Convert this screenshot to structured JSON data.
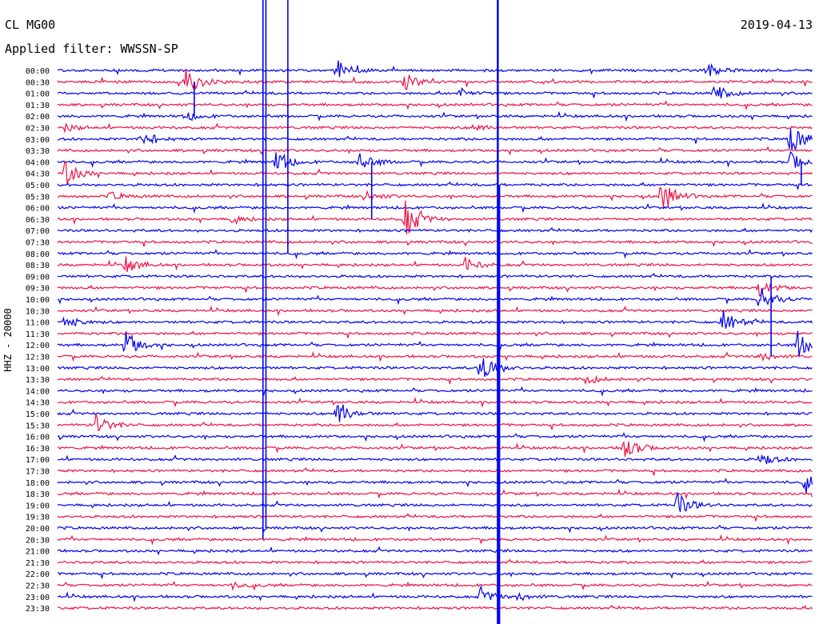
{
  "header": {
    "station": "CL MG00",
    "date": "2019-04-13",
    "filter": "Applied filter: WWSSN-SP"
  },
  "colors": {
    "trace_a": "#0000ee",
    "trace_b": "#ee1144",
    "background": "#ffffff",
    "text": "#000000"
  },
  "chart_data": {
    "type": "line",
    "title": "CL MG00",
    "ylabel": "HHZ - 20000",
    "row_labels": [
      "00:00",
      "00:30",
      "01:00",
      "01:30",
      "02:00",
      "02:30",
      "03:00",
      "03:30",
      "04:00",
      "04:30",
      "05:00",
      "05:30",
      "06:00",
      "06:30",
      "07:00",
      "07:30",
      "08:00",
      "08:30",
      "09:00",
      "09:30",
      "10:00",
      "10:30",
      "11:00",
      "11:30",
      "12:00",
      "12:30",
      "13:00",
      "13:30",
      "14:00",
      "14:30",
      "15:00",
      "15:30",
      "16:00",
      "16:30",
      "17:00",
      "17:30",
      "18:00",
      "18:30",
      "19:00",
      "19:30",
      "20:00",
      "20:30",
      "21:00",
      "21:30",
      "22:00",
      "22:30",
      "23:00",
      "23:30"
    ],
    "row_minutes": 30,
    "events": [
      {
        "row": 0,
        "t": 0.37,
        "amp": 12
      },
      {
        "row": 0,
        "t": 0.86,
        "amp": 9
      },
      {
        "row": 1,
        "t": 0.17,
        "amp": 18
      },
      {
        "row": 1,
        "t": 0.46,
        "amp": 10
      },
      {
        "row": 2,
        "t": 0.53,
        "amp": 7
      },
      {
        "row": 2,
        "t": 0.87,
        "amp": 10
      },
      {
        "row": 4,
        "t": 0.17,
        "amp": 6
      },
      {
        "row": 5,
        "t": 0.01,
        "amp": 4
      },
      {
        "row": 5,
        "t": 0.55,
        "amp": 5
      },
      {
        "row": 6,
        "t": 0.11,
        "amp": 12
      },
      {
        "row": 6,
        "t": 0.97,
        "amp": 20
      },
      {
        "row": 8,
        "t": 0.29,
        "amp": 14
      },
      {
        "row": 8,
        "t": 0.4,
        "amp": 14
      },
      {
        "row": 8,
        "t": 0.97,
        "amp": 12
      },
      {
        "row": 9,
        "t": 0.01,
        "amp": 16
      },
      {
        "row": 11,
        "t": 0.07,
        "amp": 5
      },
      {
        "row": 11,
        "t": 0.41,
        "amp": 6
      },
      {
        "row": 11,
        "t": 0.8,
        "amp": 22
      },
      {
        "row": 13,
        "t": 0.23,
        "amp": 5
      },
      {
        "row": 13,
        "t": 0.46,
        "amp": 26
      },
      {
        "row": 17,
        "t": 0.09,
        "amp": 10
      },
      {
        "row": 17,
        "t": 0.54,
        "amp": 9
      },
      {
        "row": 19,
        "t": 0.93,
        "amp": 10
      },
      {
        "row": 20,
        "t": 0.93,
        "amp": 16
      },
      {
        "row": 22,
        "t": 0.01,
        "amp": 8
      },
      {
        "row": 22,
        "t": 0.88,
        "amp": 16
      },
      {
        "row": 24,
        "t": 0.09,
        "amp": 18
      },
      {
        "row": 24,
        "t": 0.98,
        "amp": 20
      },
      {
        "row": 25,
        "t": 0.93,
        "amp": 6
      },
      {
        "row": 26,
        "t": 0.56,
        "amp": 24
      },
      {
        "row": 27,
        "t": 0.7,
        "amp": 6
      },
      {
        "row": 30,
        "t": 0.37,
        "amp": 18
      },
      {
        "row": 31,
        "t": 0.05,
        "amp": 16
      },
      {
        "row": 33,
        "t": 0.75,
        "amp": 16
      },
      {
        "row": 34,
        "t": 0.93,
        "amp": 10
      },
      {
        "row": 36,
        "t": 0.99,
        "amp": 12
      },
      {
        "row": 38,
        "t": 0.82,
        "amp": 16
      },
      {
        "row": 45,
        "t": 0.23,
        "amp": 5
      },
      {
        "row": 46,
        "t": 0.56,
        "amp": 10
      },
      {
        "row": 46,
        "t": 0.61,
        "amp": 5
      }
    ],
    "spikes": [
      {
        "t": 0.272,
        "from_row": 0,
        "to_row": 41
      },
      {
        "t": 0.276,
        "from_row": 0,
        "to_row": 40
      },
      {
        "t": 0.305,
        "from_row": 0,
        "to_row": 16
      },
      {
        "t": 0.583,
        "from_row": 0,
        "to_row": 48
      },
      {
        "t": 0.585,
        "from_row": 10,
        "to_row": 48
      },
      {
        "t": 0.181,
        "from_row": 4,
        "to_row": 1
      },
      {
        "t": 0.416,
        "from_row": 8,
        "to_row": 13
      },
      {
        "t": 0.945,
        "from_row": 18,
        "to_row": 25
      },
      {
        "t": 0.985,
        "from_row": 8,
        "to_row": 10
      }
    ]
  }
}
